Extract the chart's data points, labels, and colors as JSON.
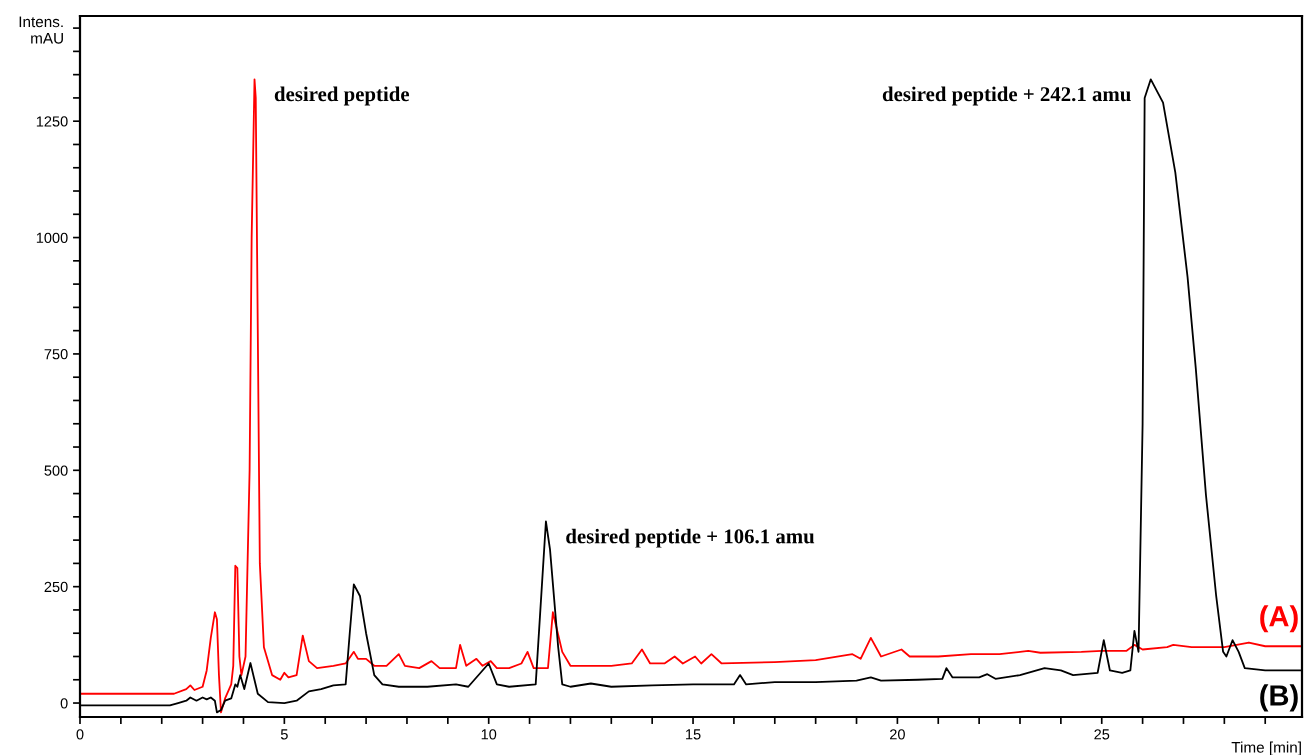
{
  "chart_data": {
    "type": "line",
    "xlabel": "Time [min]",
    "ylabel": "Intens.\nmAU",
    "xlim": [
      0,
      29.9
    ],
    "ylim": [
      -30,
      1476
    ],
    "xticks": [
      0,
      {
        "value": 1,
        "label": null
      },
      {
        "value": 2,
        "label": null
      },
      {
        "value": 3,
        "label": null
      },
      {
        "value": 4,
        "label": null
      },
      5,
      {
        "value": 6,
        "label": null
      },
      {
        "value": 7,
        "label": null
      },
      {
        "value": 8,
        "label": null
      },
      {
        "value": 9,
        "label": null
      },
      10,
      {
        "value": 11,
        "label": null
      },
      {
        "value": 12,
        "label": null
      },
      {
        "value": 13,
        "label": null
      },
      {
        "value": 14,
        "label": null
      },
      15,
      {
        "value": 16,
        "label": null
      },
      {
        "value": 17,
        "label": null
      },
      {
        "value": 18,
        "label": null
      },
      {
        "value": 19,
        "label": null
      },
      20,
      {
        "value": 21,
        "label": null
      },
      {
        "value": 22,
        "label": null
      },
      {
        "value": 23,
        "label": null
      },
      {
        "value": 24,
        "label": null
      },
      25,
      {
        "value": 26,
        "label": null
      },
      {
        "value": 27,
        "label": null
      },
      {
        "value": 28,
        "label": null
      },
      {
        "value": 29,
        "label": null
      }
    ],
    "yticks": [
      0,
      {
        "value": 50,
        "label": null
      },
      {
        "value": 100,
        "label": null
      },
      {
        "value": 150,
        "label": null
      },
      {
        "value": 200,
        "label": null
      },
      250,
      {
        "value": 300,
        "label": null
      },
      {
        "value": 350,
        "label": null
      },
      {
        "value": 400,
        "label": null
      },
      {
        "value": 450,
        "label": null
      },
      500,
      {
        "value": 550,
        "label": null
      },
      {
        "value": 600,
        "label": null
      },
      {
        "value": 650,
        "label": null
      },
      {
        "value": 700,
        "label": null
      },
      750,
      {
        "value": 800,
        "label": null
      },
      {
        "value": 850,
        "label": null
      },
      {
        "value": 900,
        "label": null
      },
      {
        "value": 950,
        "label": null
      },
      1000,
      {
        "value": 1050,
        "label": null
      },
      {
        "value": 1100,
        "label": null
      },
      {
        "value": 1150,
        "label": null
      },
      {
        "value": 1200,
        "label": null
      },
      1250,
      {
        "value": 1300,
        "label": null
      },
      {
        "value": 1350,
        "label": null
      },
      {
        "value": 1400,
        "label": null
      },
      {
        "value": 1450,
        "label": null
      }
    ],
    "grid": false,
    "legend": false,
    "marker": "none",
    "line_style": "solid",
    "series": [
      {
        "name": "(A)",
        "color": "#ff0000",
        "x": [
          0,
          2.3,
          2.6,
          2.7,
          2.8,
          3.0,
          3.1,
          3.2,
          3.3,
          3.35,
          3.4,
          3.45,
          3.55,
          3.7,
          3.75,
          3.8,
          3.85,
          3.9,
          3.95,
          4.05,
          4.15,
          4.2,
          4.27,
          4.3,
          4.35,
          4.4,
          4.5,
          4.7,
          4.9,
          5.0,
          5.1,
          5.3,
          5.45,
          5.6,
          5.8,
          6.2,
          6.5,
          6.7,
          6.8,
          7.0,
          7.2,
          7.5,
          7.8,
          7.95,
          8.3,
          8.6,
          8.8,
          9.2,
          9.3,
          9.45,
          9.7,
          9.85,
          10.05,
          10.2,
          10.5,
          10.8,
          10.95,
          11.1,
          11.45,
          11.57,
          11.8,
          12.0,
          12.5,
          13.0,
          13.5,
          13.75,
          13.95,
          14.3,
          14.55,
          14.75,
          15.05,
          15.2,
          15.45,
          15.7,
          17.0,
          18.0,
          18.9,
          19.1,
          19.35,
          19.6,
          20.1,
          20.3,
          21.0,
          21.8,
          22.5,
          23.2,
          23.5,
          24.5,
          25.0,
          25.6,
          25.8,
          26.0,
          26.6,
          26.75,
          27.2,
          28.0,
          28.6,
          29.0,
          29.9
        ],
        "values": [
          20,
          20,
          30,
          38,
          28,
          35,
          70,
          140,
          195,
          180,
          60,
          -20,
          10,
          40,
          80,
          295,
          290,
          100,
          60,
          100,
          500,
          1000,
          1340,
          1300,
          800,
          300,
          120,
          60,
          50,
          65,
          55,
          60,
          145,
          90,
          75,
          80,
          85,
          110,
          95,
          95,
          80,
          80,
          105,
          80,
          75,
          90,
          75,
          75,
          125,
          80,
          95,
          80,
          90,
          75,
          75,
          85,
          110,
          75,
          75,
          195,
          110,
          80,
          80,
          80,
          85,
          115,
          85,
          85,
          100,
          85,
          100,
          85,
          105,
          85,
          88,
          92,
          105,
          95,
          140,
          100,
          115,
          100,
          100,
          105,
          105,
          112,
          108,
          110,
          112,
          112,
          125,
          115,
          120,
          125,
          120,
          120,
          130,
          122,
          122
        ]
      },
      {
        "name": "(B)",
        "color": "#000000",
        "x": [
          0,
          2.2,
          2.4,
          2.6,
          2.7,
          2.85,
          3.0,
          3.1,
          3.2,
          3.3,
          3.35,
          3.45,
          3.55,
          3.7,
          3.8,
          3.85,
          3.92,
          4.02,
          4.17,
          4.35,
          4.6,
          5.0,
          5.3,
          5.6,
          5.9,
          6.2,
          6.5,
          6.6,
          6.7,
          6.85,
          7.0,
          7.2,
          7.4,
          7.8,
          8.5,
          9.2,
          9.5,
          10.0,
          10.2,
          10.5,
          11.15,
          11.3,
          11.4,
          11.5,
          11.7,
          11.8,
          12.0,
          12.5,
          13.0,
          14.0,
          15.0,
          16.0,
          16.15,
          16.3,
          17.0,
          18.0,
          19.0,
          19.35,
          19.6,
          20.5,
          21.1,
          21.2,
          21.35,
          22.0,
          22.2,
          22.4,
          23.0,
          23.6,
          24.0,
          24.3,
          24.9,
          25.05,
          25.2,
          25.5,
          25.7,
          25.8,
          25.9,
          26.0,
          26.05,
          26.2,
          26.5,
          26.8,
          27.1,
          27.3,
          27.55,
          27.8,
          27.97,
          28.05,
          28.2,
          28.35,
          28.5,
          29.0,
          29.9
        ],
        "values": [
          -5,
          -5,
          0,
          5,
          12,
          5,
          12,
          8,
          12,
          5,
          -20,
          -15,
          5,
          10,
          40,
          35,
          60,
          30,
          86,
          20,
          2,
          0,
          5,
          25,
          30,
          38,
          40,
          150,
          255,
          230,
          150,
          60,
          40,
          35,
          35,
          40,
          35,
          85,
          40,
          35,
          40,
          250,
          390,
          330,
          120,
          40,
          35,
          42,
          35,
          38,
          40,
          40,
          60,
          40,
          45,
          45,
          48,
          55,
          48,
          50,
          52,
          75,
          55,
          55,
          62,
          52,
          60,
          75,
          70,
          60,
          65,
          135,
          70,
          65,
          70,
          155,
          110,
          600,
          1300,
          1340,
          1290,
          1140,
          915,
          720,
          447,
          230,
          110,
          100,
          135,
          110,
          75,
          70,
          70
        ]
      }
    ],
    "annotations": [
      {
        "text": "desired peptide",
        "x": 4.27,
        "y": 1340
      },
      {
        "text": "desired peptide + 106.1 amu",
        "x": 11.4,
        "y": 390
      },
      {
        "text": "desired peptide + 242.1 amu",
        "x": 26.2,
        "y": 1340
      }
    ]
  }
}
